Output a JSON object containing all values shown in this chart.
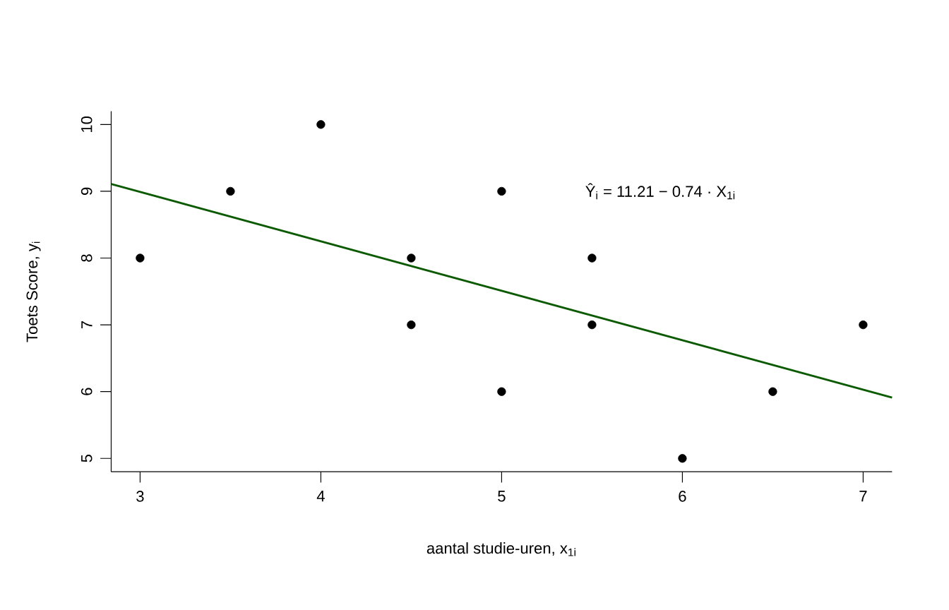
{
  "chart_data": {
    "type": "scatter",
    "xlabel": "aantal studie-uren, x$_{1i}$",
    "ylabel": "Toets Score, y$_{i}$",
    "annotations": [
      "Ŷ$_{i}$ = 11.21 − 0.74 · X$_{1i}$"
    ],
    "marker": "circle",
    "xlim": [
      2.84,
      7.16
    ],
    "ylim": [
      4.8,
      10.2
    ],
    "xticks": [
      3,
      4,
      5,
      6,
      7
    ],
    "yticks": [
      5,
      6,
      7,
      8,
      9,
      10
    ],
    "series": [
      {
        "color": "#000000",
        "x": [
          3,
          3.5,
          4,
          4.5,
          4.5,
          5,
          5,
          5.5,
          5.5,
          6,
          6.5,
          7
        ],
        "values": [
          8,
          9,
          10,
          8,
          7,
          9,
          6,
          8,
          7,
          5,
          6,
          7
        ]
      },
      {
        "type": "line",
        "color": "#0b5a00",
        "marker": "none",
        "x": [
          2.84,
          7.16
        ],
        "values": [
          9.11,
          5.91
        ]
      }
    ]
  }
}
